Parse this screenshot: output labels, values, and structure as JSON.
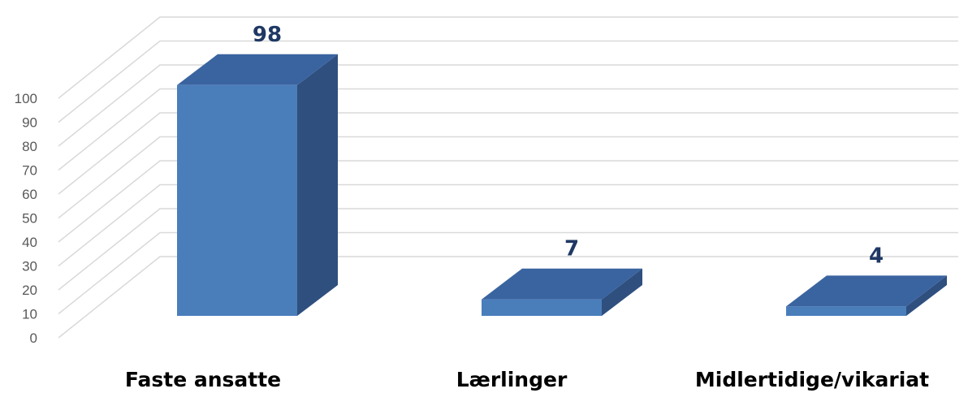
{
  "chart_data": {
    "type": "bar",
    "style": "3d-column",
    "title": "",
    "xlabel": "",
    "ylabel": "",
    "categories": [
      "Faste ansatte",
      "Lærlinger",
      "Midlertidige/vikariat"
    ],
    "values": [
      98,
      7,
      4
    ],
    "data_labels": [
      "98",
      "7",
      "4"
    ],
    "ylim": [
      0,
      100
    ],
    "yticks": [
      0,
      10,
      20,
      30,
      40,
      50,
      60,
      70,
      80,
      90,
      100
    ],
    "ytick_labels": [
      "0",
      "10",
      "20",
      "30",
      "40",
      "50",
      "60",
      "70",
      "80",
      "90",
      "100"
    ],
    "grid": true,
    "legend": "none",
    "colors": {
      "bar_front": "#4a7ebb",
      "bar_top": "#3a64a0",
      "bar_side": "#2f4f7f",
      "grid": "#d9d9d9",
      "data_label": "#1f3864",
      "tick_label": "#595959"
    }
  }
}
